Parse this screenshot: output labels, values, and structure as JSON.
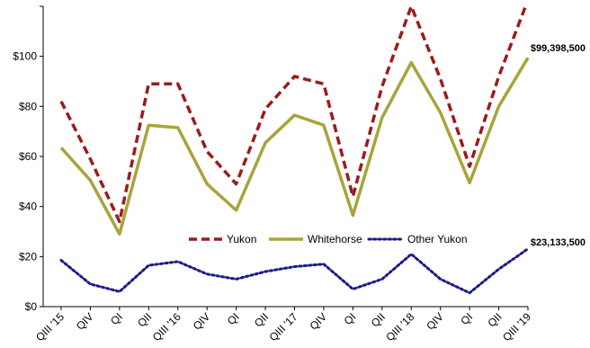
{
  "chart_data": {
    "type": "line",
    "title": "",
    "xlabel": "",
    "ylabel": "",
    "ylim": [
      0,
      120
    ],
    "y_ticks": [
      "$0",
      "$20",
      "$40",
      "$60",
      "$80",
      "$100"
    ],
    "categories": [
      "QIII '15",
      "QIV",
      "QI",
      "QII",
      "QIII '16",
      "QIV",
      "QI",
      "QII",
      "QIII '17",
      "QIV",
      "QI",
      "QII",
      "QIII '18",
      "QIV",
      "QI",
      "QII",
      "QIII '19"
    ],
    "series": [
      {
        "name": "Yukon",
        "color": "#9b1c1c",
        "style": "dashed",
        "values": [
          82,
          59,
          34,
          89,
          89,
          62,
          49,
          79,
          92,
          89,
          44,
          88,
          120,
          91,
          56,
          92,
          122.5
        ]
      },
      {
        "name": "Whitehorse",
        "color": "#a8a43c",
        "style": "solid",
        "values": [
          63.5,
          50.5,
          29,
          72.5,
          71.5,
          49,
          38.5,
          65.5,
          76.5,
          72.5,
          36.5,
          75.5,
          97.5,
          77.5,
          49.5,
          80,
          99.4
        ]
      },
      {
        "name": "Other Yukon",
        "color": "#1a1a8c",
        "style": "dotted",
        "values": [
          18.5,
          9,
          6,
          16.5,
          18,
          13,
          11,
          14,
          16,
          17,
          7,
          11,
          21,
          11,
          5.5,
          15,
          23.1
        ]
      }
    ],
    "legend": {
      "position": "bottom-center"
    },
    "annotations": [
      {
        "series": "Whitehorse",
        "text": "$99,398,500"
      },
      {
        "series": "Other Yukon",
        "text": "$23,133,500"
      }
    ]
  }
}
